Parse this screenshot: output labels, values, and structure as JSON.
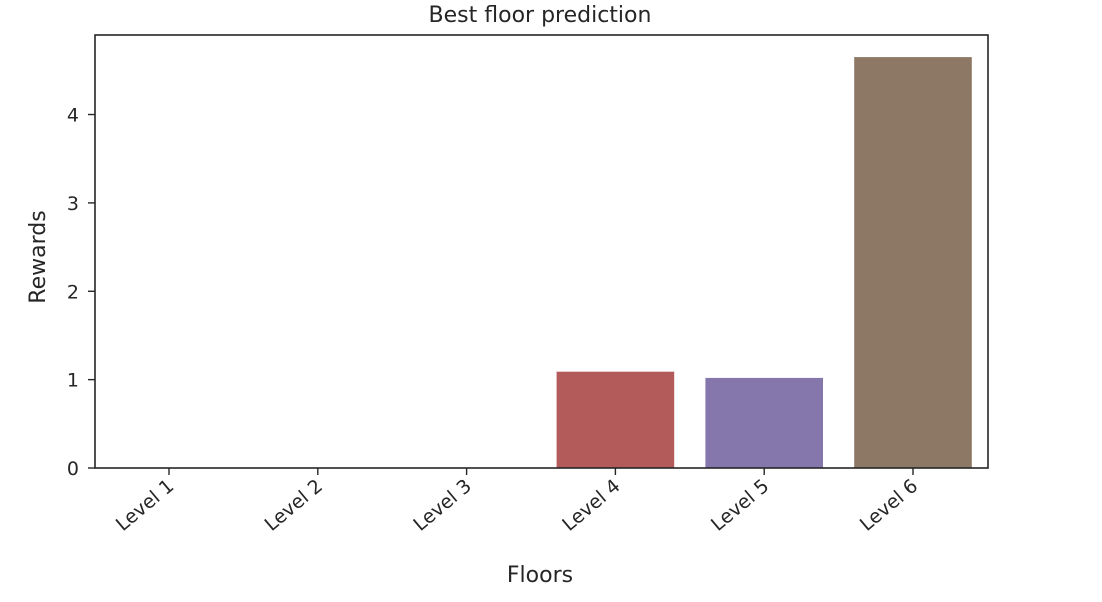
{
  "chart_data": {
    "type": "bar",
    "title": "Best floor prediction",
    "xlabel": "Floors",
    "ylabel": "Rewards",
    "categories": [
      "Level 1",
      "Level 2",
      "Level 3",
      "Level 4",
      "Level 5",
      "Level 6"
    ],
    "values": [
      0,
      0,
      0,
      1.09,
      1.02,
      4.65
    ],
    "colors": [
      "#4c72b0",
      "#dd8452",
      "#55a868",
      "#b35a5b",
      "#8577ab",
      "#8c7864"
    ],
    "ylim": [
      0,
      4.9
    ],
    "yticks": [
      0,
      1,
      2,
      3,
      4
    ],
    "grid": false,
    "legend": "none"
  }
}
